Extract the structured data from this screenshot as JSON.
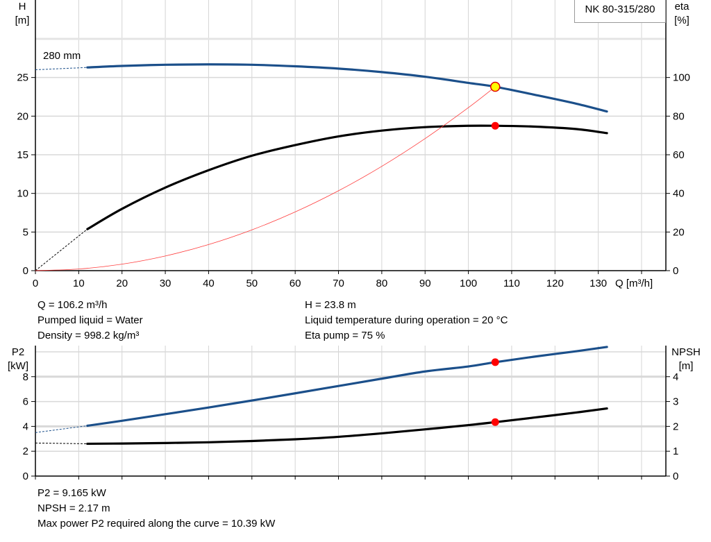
{
  "pump_label": "NK 80-315/280",
  "chart_data": [
    {
      "type": "line",
      "title": "",
      "xlabel": "Q [m³/h]",
      "x_ticks": [
        0,
        10,
        20,
        30,
        40,
        50,
        60,
        70,
        80,
        90,
        100,
        110,
        120,
        130
      ],
      "xlim": [
        0,
        140
      ],
      "y_left": {
        "label_top": "H",
        "label_unit": "[m]",
        "ticks": [
          0,
          5,
          10,
          15,
          20,
          25
        ],
        "ylim": [
          0,
          30
        ]
      },
      "y_right": {
        "label_top": "eta",
        "label_unit": "[%]",
        "ticks": [
          0,
          20,
          40,
          60,
          80,
          100
        ],
        "ylim": [
          0,
          120
        ]
      },
      "grid": true,
      "impeller_label": "280 mm",
      "series": [
        {
          "key": "H",
          "axis": "left",
          "color": "#1b4f8a",
          "x": [
            12,
            20,
            30,
            40,
            50,
            60,
            70,
            80,
            90,
            100,
            106.2,
            115,
            125,
            132
          ],
          "y": [
            26.3,
            26.5,
            26.65,
            26.7,
            26.65,
            26.45,
            26.15,
            25.7,
            25.1,
            24.3,
            23.8,
            22.8,
            21.6,
            20.6
          ],
          "extrapolated_from": [
            0,
            26.0
          ]
        },
        {
          "key": "eta",
          "axis": "right",
          "color": "#000000",
          "x": [
            12,
            20,
            30,
            40,
            50,
            60,
            70,
            80,
            90,
            100,
            106.2,
            115,
            125,
            132
          ],
          "y": [
            21.5,
            32,
            43,
            52,
            59.5,
            65,
            69.5,
            72.5,
            74.3,
            75,
            75,
            74.6,
            73.3,
            71.2
          ],
          "extrapolated_from": [
            0,
            0
          ]
        },
        {
          "key": "system",
          "axis": "left",
          "color": "#ff3b3b",
          "x": [
            0,
            10,
            20,
            30,
            40,
            50,
            60,
            70,
            80,
            90,
            100,
            106.2
          ],
          "y": [
            0,
            0.21,
            0.84,
            1.9,
            3.38,
            5.28,
            7.6,
            10.34,
            13.5,
            17.09,
            21.1,
            23.8
          ]
        }
      ],
      "operating_point": {
        "Q": 106.2,
        "H": 23.8,
        "eta": 75
      }
    },
    {
      "type": "line",
      "title": "",
      "xlim": [
        0,
        140
      ],
      "y_left": {
        "label_top": "P2",
        "label_unit": "[kW]",
        "ticks": [
          0,
          2,
          4,
          6,
          8
        ],
        "ylim": [
          0,
          10.5
        ]
      },
      "y_right": {
        "label_top": "NPSH",
        "label_unit": "[m]",
        "ticks": [
          0,
          1,
          2,
          3,
          4
        ],
        "ylim": [
          0,
          5.25
        ]
      },
      "grid": true,
      "series": [
        {
          "key": "P2",
          "axis": "left",
          "color": "#1b4f8a",
          "x": [
            12,
            20,
            30,
            40,
            50,
            60,
            70,
            80,
            90,
            100,
            106.2,
            115,
            125,
            132
          ],
          "y": [
            4.05,
            4.45,
            4.98,
            5.52,
            6.08,
            6.66,
            7.25,
            7.84,
            8.42,
            8.82,
            9.165,
            9.6,
            10.05,
            10.39
          ],
          "extrapolated_from": [
            0,
            3.5
          ]
        },
        {
          "key": "NPSH",
          "axis": "right",
          "color": "#000000",
          "x": [
            12,
            20,
            30,
            40,
            50,
            60,
            70,
            80,
            90,
            100,
            106.2,
            115,
            125,
            132
          ],
          "y": [
            1.3,
            1.31,
            1.33,
            1.36,
            1.41,
            1.48,
            1.58,
            1.72,
            1.88,
            2.05,
            2.17,
            2.35,
            2.56,
            2.72
          ],
          "extrapolated_from": [
            0,
            1.33
          ]
        }
      ],
      "operating_point": {
        "Q": 106.2,
        "P2": 9.165,
        "NPSH": 2.17
      }
    }
  ],
  "info_top_left": [
    "Q = 106.2 m³/h",
    "Pumped liquid = Water",
    "Density = 998.2 kg/m³"
  ],
  "info_top_right": [
    "H = 23.8 m",
    "Liquid temperature during operation = 20 °C",
    "Eta pump = 75 %"
  ],
  "info_bottom": [
    "P2 = 9.165 kW",
    "NPSH = 2.17 m",
    "Max power P2 required along the curve = 10.39 kW"
  ]
}
